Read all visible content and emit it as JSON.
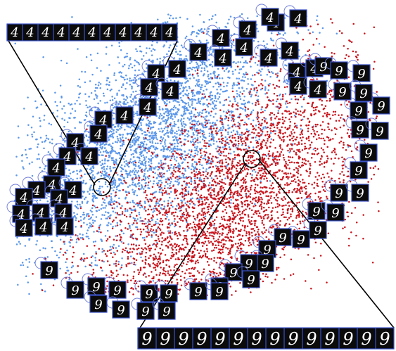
{
  "colors": {
    "class_a": "#5b97ea",
    "class_b": "#c8141c",
    "thumb_bg": "#0b0b0b",
    "thumb_frame": "#3a52c9",
    "callout": "#000000",
    "halo": "#6a78d6"
  },
  "classes": {
    "a": "4",
    "b": "9"
  },
  "strips": {
    "top": {
      "digits": [
        "4",
        "4",
        "4",
        "4",
        "4",
        "4",
        "4",
        "4",
        "4",
        "4",
        "4"
      ]
    },
    "bottom": {
      "digits": [
        "9",
        "9",
        "9",
        "9",
        "9",
        "9",
        "9",
        "9",
        "9",
        "9",
        "9",
        "9",
        "9",
        "9"
      ]
    }
  },
  "thumbnails": [
    "4",
    "4",
    "4",
    "4",
    "4",
    "4",
    "4",
    "4",
    "4",
    "4",
    "4",
    "4",
    "4",
    "4",
    "4",
    "4",
    "4",
    "4",
    "4",
    "4",
    "4",
    "4",
    "4",
    "4",
    "4",
    "4",
    "4",
    "4",
    "4",
    "4",
    "4",
    "4",
    "4",
    "4",
    "4",
    "4",
    "4",
    "9",
    "9",
    "9",
    "9",
    "9",
    "9",
    "9",
    "9",
    "9",
    "9",
    "9",
    "9",
    "9",
    "9",
    "9",
    "9",
    "9",
    "9",
    "9",
    "9",
    "9",
    "9",
    "9",
    "9",
    "9",
    "9",
    "9",
    "9",
    "9",
    "9",
    "9",
    "9",
    "9",
    "9",
    "9",
    "9"
  ]
}
